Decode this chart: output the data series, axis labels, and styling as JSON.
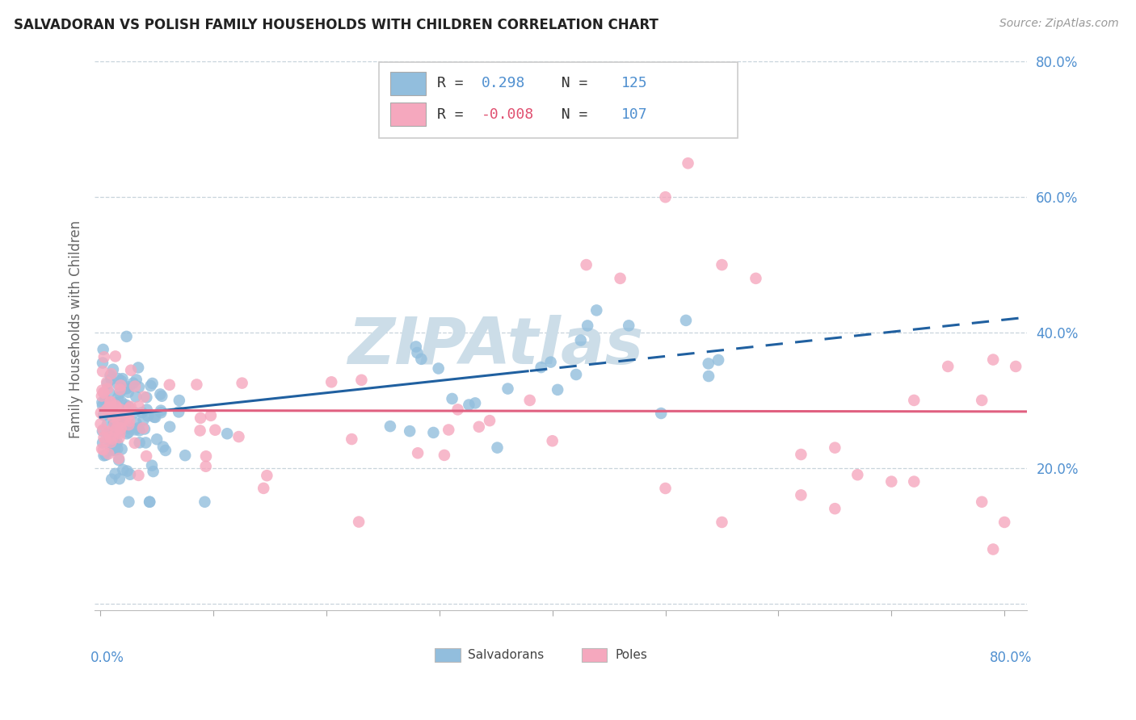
{
  "title": "SALVADORAN VS POLISH FAMILY HOUSEHOLDS WITH CHILDREN CORRELATION CHART",
  "source": "Source: ZipAtlas.com",
  "ylabel": "Family Households with Children",
  "salvadoran_color": "#92bedd",
  "pole_color": "#f5a8be",
  "trendline_sal_color": "#2060a0",
  "trendline_pol_color": "#e06080",
  "watermark": "ZIPAtlas",
  "watermark_color": "#ccdde8",
  "background_color": "#ffffff",
  "grid_color": "#c8d4dc",
  "ytick_color": "#5090d0",
  "xtick_color": "#5090d0",
  "legend_text_color": "#333333",
  "legend_val_color": "#5090d0",
  "legend_r_sal": "0.298",
  "legend_n_sal": "125",
  "legend_r_pol": "-0.008",
  "legend_n_pol": "107"
}
